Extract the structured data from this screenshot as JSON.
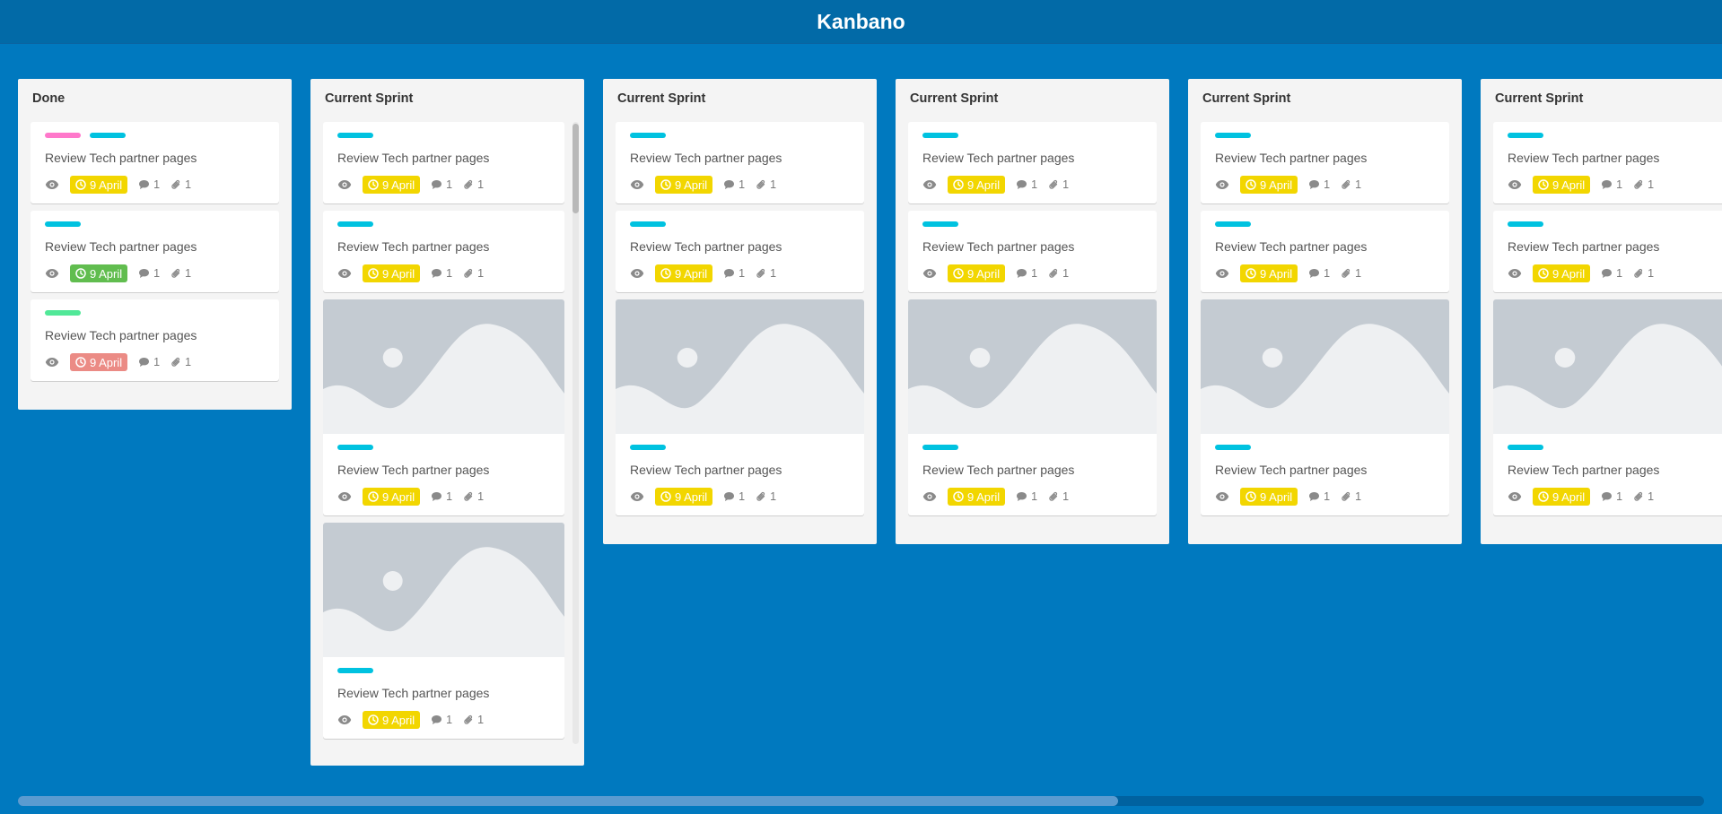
{
  "app": {
    "title": "Kanbano"
  },
  "colors": {
    "board_bg": "#0079bf",
    "header_bg": "#026aa7",
    "label_pink": "#ff78cb",
    "label_cyan": "#00c2e0",
    "label_green": "#51e898",
    "due_yellow": "#f2d600",
    "due_green": "#61bd4f",
    "due_red": "#eb8b85"
  },
  "lists": [
    {
      "title": "Done",
      "cards": [
        {
          "type": "task",
          "labels": [
            "pink",
            "cyan"
          ],
          "title": "Review Tech partner pages",
          "due": "9 April",
          "due_color": "#f2d600",
          "comments": "1",
          "attachments": "1"
        },
        {
          "type": "task",
          "labels": [
            "cyan"
          ],
          "title": "Review Tech partner pages",
          "due": "9 April",
          "due_color": "#61bd4f",
          "comments": "1",
          "attachments": "1"
        },
        {
          "type": "task",
          "labels": [
            "green"
          ],
          "title": "Review Tech partner pages",
          "due": "9 April",
          "due_color": "#eb8b85",
          "comments": "1",
          "attachments": "1"
        }
      ]
    },
    {
      "title": "Current Sprint",
      "scroll": true,
      "cards": [
        {
          "type": "task",
          "labels": [
            "cyan"
          ],
          "title": "Review Tech partner pages",
          "due": "9 April",
          "due_color": "#f2d600",
          "comments": "1",
          "attachments": "1"
        },
        {
          "type": "task",
          "labels": [
            "cyan"
          ],
          "title": "Review Tech partner pages",
          "due": "9 April",
          "due_color": "#f2d600",
          "comments": "1",
          "attachments": "1"
        },
        {
          "type": "cover",
          "labels": [
            "cyan"
          ],
          "title": "Review Tech partner pages",
          "due": "9 April",
          "due_color": "#f2d600",
          "comments": "1",
          "attachments": "1"
        },
        {
          "type": "cover",
          "labels": [
            "cyan"
          ],
          "title": "Review Tech partner pages",
          "due": "9 April",
          "due_color": "#f2d600",
          "comments": "1",
          "attachments": "1"
        }
      ]
    },
    {
      "title": "Current Sprint",
      "cards": [
        {
          "type": "task",
          "labels": [
            "cyan"
          ],
          "title": "Review Tech partner pages",
          "due": "9 April",
          "due_color": "#f2d600",
          "comments": "1",
          "attachments": "1"
        },
        {
          "type": "task",
          "labels": [
            "cyan"
          ],
          "title": "Review Tech partner pages",
          "due": "9 April",
          "due_color": "#f2d600",
          "comments": "1",
          "attachments": "1"
        },
        {
          "type": "cover",
          "labels": [
            "cyan"
          ],
          "title": "Review Tech partner pages",
          "due": "9 April",
          "due_color": "#f2d600",
          "comments": "1",
          "attachments": "1"
        }
      ]
    },
    {
      "title": "Current Sprint",
      "cards": [
        {
          "type": "task",
          "labels": [
            "cyan"
          ],
          "title": "Review Tech partner pages",
          "due": "9 April",
          "due_color": "#f2d600",
          "comments": "1",
          "attachments": "1"
        },
        {
          "type": "task",
          "labels": [
            "cyan"
          ],
          "title": "Review Tech partner pages",
          "due": "9 April",
          "due_color": "#f2d600",
          "comments": "1",
          "attachments": "1"
        },
        {
          "type": "cover",
          "labels": [
            "cyan"
          ],
          "title": "Review Tech partner pages",
          "due": "9 April",
          "due_color": "#f2d600",
          "comments": "1",
          "attachments": "1"
        }
      ]
    },
    {
      "title": "Current Sprint",
      "cards": [
        {
          "type": "task",
          "labels": [
            "cyan"
          ],
          "title": "Review Tech partner pages",
          "due": "9 April",
          "due_color": "#f2d600",
          "comments": "1",
          "attachments": "1"
        },
        {
          "type": "task",
          "labels": [
            "cyan"
          ],
          "title": "Review Tech partner pages",
          "due": "9 April",
          "due_color": "#f2d600",
          "comments": "1",
          "attachments": "1"
        },
        {
          "type": "cover",
          "labels": [
            "cyan"
          ],
          "title": "Review Tech partner pages",
          "due": "9 April",
          "due_color": "#f2d600",
          "comments": "1",
          "attachments": "1"
        }
      ]
    },
    {
      "title": "Current Sprint",
      "cards": [
        {
          "type": "task",
          "labels": [
            "cyan"
          ],
          "title": "Review Tech partner pages",
          "due": "9 April",
          "due_color": "#f2d600",
          "comments": "1",
          "attachments": "1"
        },
        {
          "type": "task",
          "labels": [
            "cyan"
          ],
          "title": "Review Tech partner pages",
          "due": "9 April",
          "due_color": "#f2d600",
          "comments": "1",
          "attachments": "1"
        },
        {
          "type": "cover",
          "labels": [
            "cyan"
          ],
          "title": "Review Tech partner pages",
          "due": "9 April",
          "due_color": "#f2d600",
          "comments": "1",
          "attachments": "1"
        }
      ]
    }
  ]
}
